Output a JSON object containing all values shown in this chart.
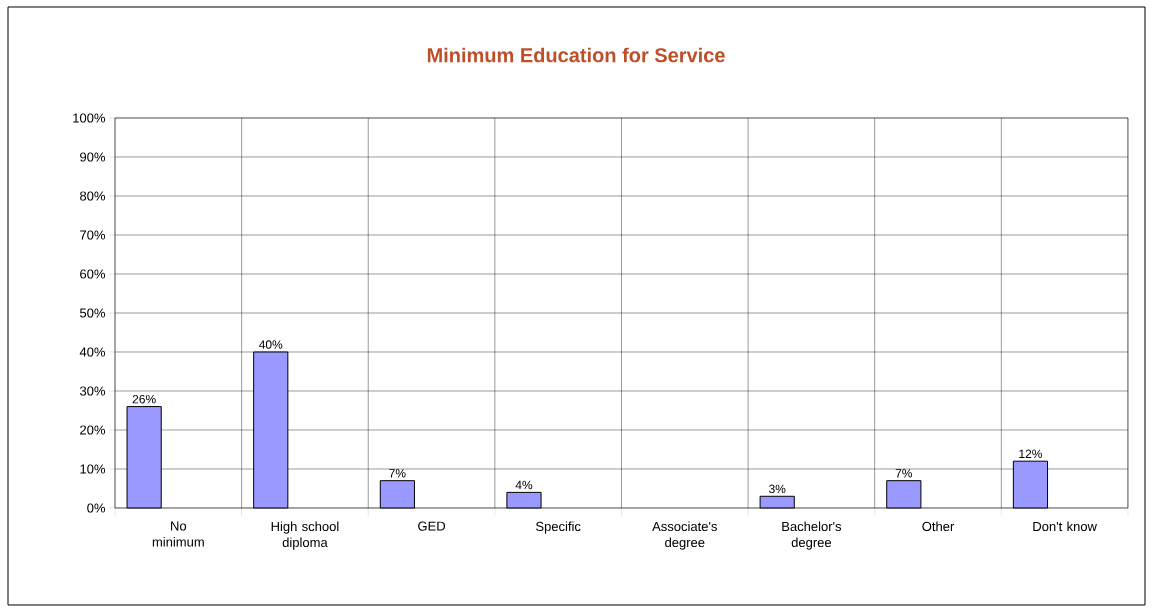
{
  "chart_data": {
    "type": "bar",
    "title": "Minimum Education for Service",
    "categories": [
      "No minimum",
      "High school diploma",
      "GED",
      "Specific",
      "Associate's degree",
      "Bachelor's degree",
      "Other",
      "Don't know"
    ],
    "values": [
      26,
      40,
      7,
      4,
      null,
      3,
      7,
      12
    ],
    "value_labels": [
      "26%",
      "40%",
      "7%",
      "4%",
      null,
      "3%",
      "7%",
      "12%"
    ],
    "color": "#9999ff",
    "ylim": [
      0,
      100
    ],
    "yticks": [
      {
        "value": 0,
        "label": "0%"
      },
      {
        "value": 10,
        "label": "10%"
      },
      {
        "value": 20,
        "label": "20%"
      },
      {
        "value": 30,
        "label": "30%"
      },
      {
        "value": 40,
        "label": "40%"
      },
      {
        "value": 50,
        "label": "50%"
      },
      {
        "value": 60,
        "label": "60%"
      },
      {
        "value": 70,
        "label": "70%"
      },
      {
        "value": 80,
        "label": "80%"
      },
      {
        "value": 90,
        "label": "90%"
      },
      {
        "value": 100,
        "label": "100%"
      }
    ],
    "grid": true
  }
}
